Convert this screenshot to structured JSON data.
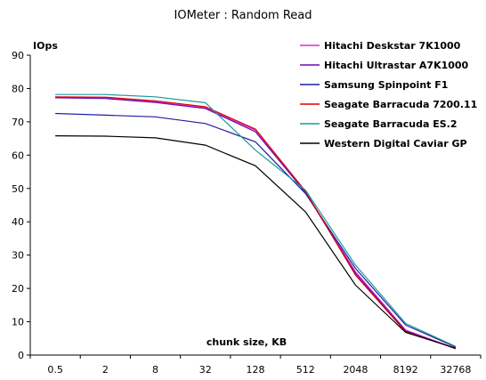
{
  "chart_data": {
    "type": "line",
    "title": "IOMeter : Random Read",
    "ylabel": "IOps",
    "xlabel": "chunk size, KB",
    "categories": [
      "0.5",
      "2",
      "8",
      "32",
      "128",
      "512",
      "2048",
      "8192",
      "32768"
    ],
    "ylim": [
      0,
      90
    ],
    "yticks": [
      0,
      10,
      20,
      30,
      40,
      50,
      60,
      70,
      80,
      90
    ],
    "grid": false,
    "legend_position": "top-right",
    "series": [
      {
        "name": "Hitachi Deskstar 7K1000",
        "color": "#d42fd4",
        "values": [
          77.3,
          77.2,
          76.0,
          74.2,
          67.5,
          49.0,
          25.0,
          7.5,
          2.0
        ]
      },
      {
        "name": "Hitachi Ultrastar A7K1000",
        "color": "#6a0dad",
        "values": [
          77.2,
          77.0,
          75.8,
          74.0,
          67.0,
          48.8,
          24.5,
          7.3,
          1.9
        ]
      },
      {
        "name": "Samsung Spinpoint F1",
        "color": "#1f1fa0",
        "values": [
          72.5,
          72.0,
          71.5,
          69.5,
          64.0,
          48.5,
          26.0,
          9.0,
          2.4
        ]
      },
      {
        "name": "Seagate Barracuda 7200.11",
        "color": "#e00000",
        "values": [
          77.5,
          77.4,
          76.3,
          74.5,
          67.8,
          49.2,
          24.0,
          7.0,
          2.0
        ]
      },
      {
        "name": "Seagate Barracuda ES.2",
        "color": "#1a9a9a",
        "values": [
          78.2,
          78.2,
          77.5,
          75.7,
          61.5,
          49.5,
          27.0,
          9.5,
          2.6
        ]
      },
      {
        "name": "Western Digital Caviar GP",
        "color": "#000000",
        "values": [
          65.8,
          65.7,
          65.2,
          63.0,
          56.8,
          43.0,
          21.0,
          6.8,
          2.1
        ]
      }
    ]
  }
}
